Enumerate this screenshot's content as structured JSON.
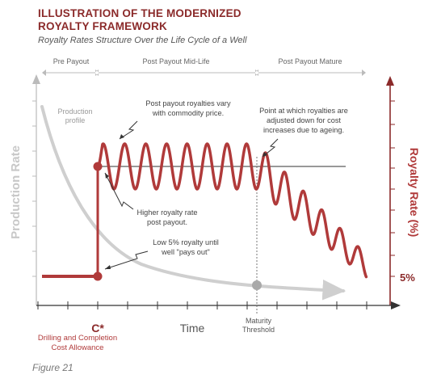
{
  "header": {
    "title_line1": "ILLUSTRATION OF THE MODERNIZED",
    "title_line2": "ROYALTY FRAMEWORK",
    "subtitle": "Royalty Rates Structure Over the Life Cycle of a Well"
  },
  "phases": [
    "Pre Payout",
    "Post Payout Mid-Life",
    "Post Payout Mature"
  ],
  "axes": {
    "left_label": "Production Rate",
    "right_label": "Royalty Rate (%)",
    "x_label": "Time",
    "right_marker": "5%"
  },
  "x_markers": {
    "c_star": "C*",
    "c_star_caption_line1": "Drilling and Completion",
    "c_star_caption_line2": "Cost Allowance",
    "maturity_line1": "Maturity",
    "maturity_line2": "Threshold"
  },
  "annotations": {
    "production_profile": [
      "Production",
      "profile"
    ],
    "post_payout_vary": [
      "Post payout royalties vary",
      "with commodity price."
    ],
    "adjusted_down": [
      "Point at which royalties are",
      "adjusted down for cost",
      "increases due to ageing."
    ],
    "higher_rate": [
      "Higher royalty rate",
      "post payout."
    ],
    "low_rate": [
      "Low 5% royalty until",
      "well \"pays out\""
    ]
  },
  "figure_label": "Figure 21",
  "colors": {
    "accent_red": "#b03a3a",
    "dark_red": "#8b2a2a",
    "grey_curve": "#c8c8c8",
    "axis": "#333333"
  }
}
